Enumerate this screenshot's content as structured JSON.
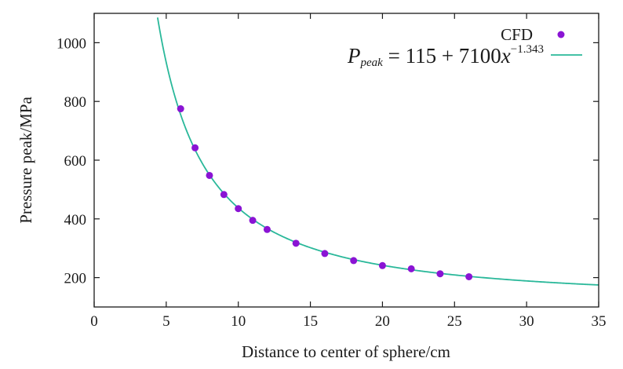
{
  "chart_data": {
    "type": "scatter",
    "title": "",
    "xlabel": "Distance to center of sphere/cm",
    "ylabel": "Pressure peak/MPa",
    "xlim": [
      0,
      35
    ],
    "ylim": [
      100,
      1100
    ],
    "xticks": [
      "0",
      "5",
      "10",
      "15",
      "20",
      "25",
      "30",
      "35"
    ],
    "yticks": [
      "200",
      "400",
      "600",
      "800",
      "1000"
    ],
    "grid": false,
    "legend_position": "top-right",
    "series": [
      {
        "name": "CFD",
        "kind": "points",
        "color": "#8a14d4",
        "x": [
          6,
          7,
          8,
          9,
          10,
          11,
          12,
          14,
          16,
          18,
          20,
          22,
          24,
          26
        ],
        "y": [
          775,
          642,
          548,
          483,
          435,
          395,
          364,
          317,
          282,
          258,
          241,
          230,
          213,
          203
        ]
      },
      {
        "name_parts": {
          "p": "P",
          "sub": "peak",
          "eq": " = 115 + 7100",
          "x": "x",
          "exp": "−1.343"
        },
        "kind": "fit-line",
        "color": "#2ab89a",
        "fit": {
          "a": 115,
          "b": 7100,
          "c": -1.343
        },
        "x_range": [
          4.4,
          35
        ]
      }
    ]
  }
}
